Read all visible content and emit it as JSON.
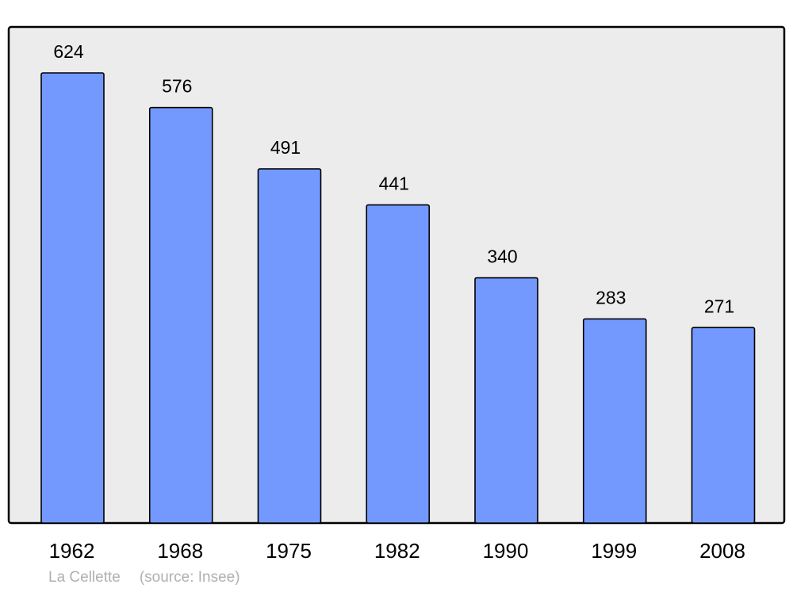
{
  "chart_data": {
    "type": "bar",
    "categories": [
      "1962",
      "1968",
      "1975",
      "1982",
      "1990",
      "1999",
      "2008"
    ],
    "values": [
      624,
      576,
      491,
      441,
      340,
      283,
      271
    ],
    "data_labels": true,
    "ylim": [
      0,
      624
    ],
    "grid": false,
    "title": "",
    "xlabel": "",
    "ylabel": "",
    "colors": {
      "bar": "#7399ff",
      "plot_background": "#ececec",
      "border": "#000000"
    }
  },
  "footer": {
    "place": "La Cellette",
    "source": "(source: Insee)"
  }
}
